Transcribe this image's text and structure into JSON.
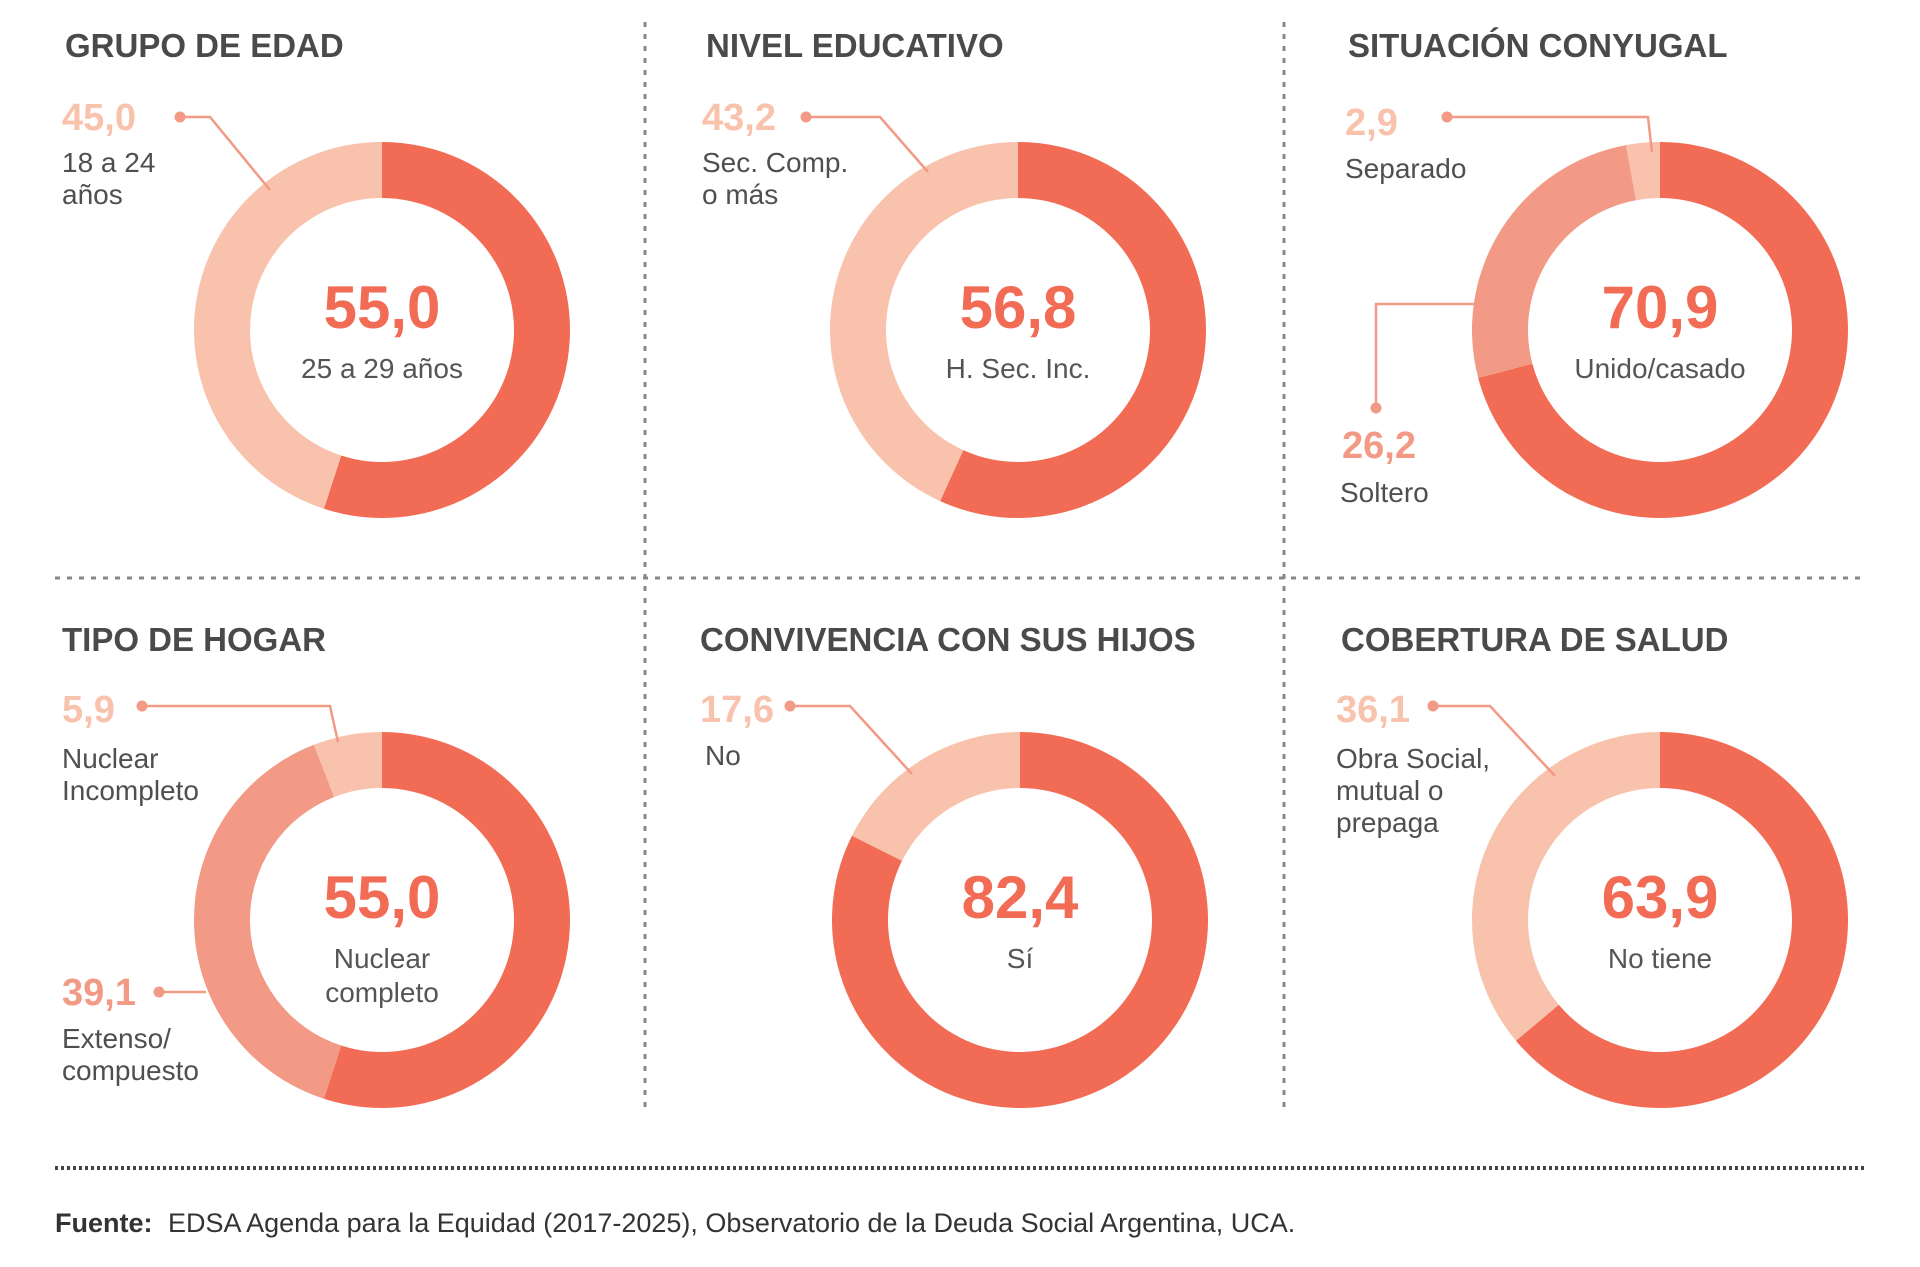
{
  "colors": {
    "dark": "#f26b54",
    "medium": "#f29a85",
    "light": "#f8c2ad",
    "divider": "#888888",
    "value_text": "#f26b54"
  },
  "chart_data": [
    {
      "type": "donut",
      "title": "GRUPO DE EDAD",
      "slices": [
        {
          "value": 55.0,
          "display": "55,0",
          "label": [
            "25 a 29 años"
          ],
          "tone": "dark",
          "role": "center"
        },
        {
          "value": 45.0,
          "display": "45,0",
          "label": [
            "18 a 24",
            "años"
          ],
          "tone": "light",
          "role": "callout"
        }
      ]
    },
    {
      "type": "donut",
      "title": "NIVEL EDUCATIVO",
      "slices": [
        {
          "value": 56.8,
          "display": "56,8",
          "label": [
            "H. Sec. Inc."
          ],
          "tone": "dark",
          "role": "center"
        },
        {
          "value": 43.2,
          "display": "43,2",
          "label": [
            "Sec. Comp.",
            "o más"
          ],
          "tone": "light",
          "role": "callout"
        }
      ]
    },
    {
      "type": "donut",
      "title": "SITUACIÓN CONYUGAL",
      "slices": [
        {
          "value": 70.9,
          "display": "70,9",
          "label": [
            "Unido/casado"
          ],
          "tone": "dark",
          "role": "center"
        },
        {
          "value": 26.2,
          "display": "26,2",
          "label": [
            "Soltero"
          ],
          "tone": "medium",
          "role": "callout"
        },
        {
          "value": 2.9,
          "display": "2,9",
          "label": [
            "Separado"
          ],
          "tone": "light",
          "role": "callout"
        }
      ]
    },
    {
      "type": "donut",
      "title": "TIPO DE HOGAR",
      "slices": [
        {
          "value": 55.0,
          "display": "55,0",
          "label": [
            "Nuclear",
            "completo"
          ],
          "tone": "dark",
          "role": "center"
        },
        {
          "value": 39.1,
          "display": "39,1",
          "label": [
            "Extenso/",
            "compuesto"
          ],
          "tone": "medium",
          "role": "callout"
        },
        {
          "value": 5.9,
          "display": "5,9",
          "label": [
            "Nuclear",
            "Incompleto"
          ],
          "tone": "light",
          "role": "callout"
        }
      ]
    },
    {
      "type": "donut",
      "title": "CONVIVENCIA CON SUS HIJOS",
      "slices": [
        {
          "value": 82.4,
          "display": "82,4",
          "label": [
            "Sí"
          ],
          "tone": "dark",
          "role": "center"
        },
        {
          "value": 17.6,
          "display": "17,6",
          "label": [
            "No"
          ],
          "tone": "light",
          "role": "callout"
        }
      ]
    },
    {
      "type": "donut",
      "title": "COBERTURA DE SALUD",
      "slices": [
        {
          "value": 63.9,
          "display": "63,9",
          "label": [
            "No tiene"
          ],
          "tone": "dark",
          "role": "center"
        },
        {
          "value": 36.1,
          "display": "36,1",
          "label": [
            "Obra Social,",
            "mutual o",
            "prepaga"
          ],
          "tone": "light",
          "role": "callout"
        }
      ]
    }
  ],
  "source": {
    "label": "Fuente:",
    "text": "EDSA Agenda para la Equidad (2017-2025), Observatorio de la Deuda Social Argentina, UCA."
  }
}
